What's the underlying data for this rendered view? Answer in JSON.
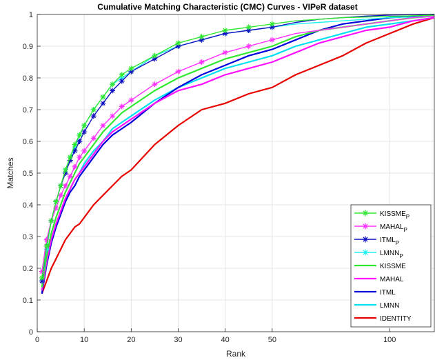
{
  "chart_data": {
    "type": "line",
    "title": "Cumulative Matching Characteristic (CMC) Curves - VIPeR dataset",
    "xlabel": "Rank",
    "ylabel": "Matches",
    "xlim": [
      0,
      119
    ],
    "ylim": [
      0,
      1
    ],
    "xticks": [
      0,
      10,
      20,
      30,
      40,
      50,
      100
    ],
    "yticks": [
      0,
      0.1,
      0.2,
      0.3,
      0.4,
      0.5,
      0.6,
      0.7,
      0.8,
      0.9,
      1
    ],
    "x_scale": "piecewise-linear: ranks 0-50 are spaced at double width relative to ranks 50-119",
    "grid": true,
    "legend_position": "bottom-right",
    "series": [
      {
        "name": "KISSME",
        "name_subscript": "P",
        "color": "#30e830",
        "marker": "asterisk",
        "x": [
          1,
          2,
          3,
          4,
          5,
          6,
          7,
          8,
          9,
          10,
          12,
          14,
          16,
          18,
          20,
          25,
          30,
          35,
          40,
          45,
          50,
          60,
          70,
          80,
          90,
          100,
          110,
          119
        ],
        "y": [
          0.17,
          0.27,
          0.35,
          0.41,
          0.46,
          0.51,
          0.55,
          0.59,
          0.62,
          0.65,
          0.7,
          0.74,
          0.78,
          0.81,
          0.83,
          0.87,
          0.91,
          0.93,
          0.95,
          0.96,
          0.97,
          0.98,
          0.985,
          0.99,
          0.992,
          0.994,
          0.996,
          0.998
        ]
      },
      {
        "name": "MAHAL",
        "name_subscript": "P",
        "color": "#ff30ff",
        "marker": "asterisk",
        "x": [
          1,
          2,
          3,
          4,
          5,
          6,
          7,
          8,
          9,
          10,
          12,
          14,
          16,
          18,
          20,
          25,
          30,
          35,
          40,
          45,
          50,
          60,
          70,
          80,
          90,
          100,
          110,
          119
        ],
        "y": [
          0.19,
          0.29,
          0.35,
          0.39,
          0.43,
          0.46,
          0.49,
          0.52,
          0.55,
          0.57,
          0.61,
          0.65,
          0.68,
          0.71,
          0.73,
          0.78,
          0.82,
          0.85,
          0.88,
          0.9,
          0.92,
          0.94,
          0.95,
          0.96,
          0.97,
          0.98,
          0.99,
          0.995
        ]
      },
      {
        "name": "ITML",
        "name_subscript": "P",
        "color": "#1010c0",
        "marker": "asterisk",
        "x": [
          1,
          2,
          3,
          4,
          5,
          6,
          7,
          8,
          9,
          10,
          12,
          14,
          16,
          18,
          20,
          25,
          30,
          35,
          40,
          45,
          50,
          60,
          70,
          80,
          90,
          100,
          110,
          119
        ],
        "y": [
          0.16,
          0.27,
          0.35,
          0.41,
          0.46,
          0.5,
          0.54,
          0.57,
          0.6,
          0.63,
          0.68,
          0.72,
          0.76,
          0.79,
          0.82,
          0.86,
          0.9,
          0.92,
          0.94,
          0.95,
          0.96,
          0.975,
          0.985,
          0.99,
          0.995,
          0.998,
          1.0,
          1.0
        ]
      },
      {
        "name": "LMNN",
        "name_subscript": "P",
        "color": "#20f0f0",
        "marker": "asterisk",
        "x": [
          1,
          2,
          3,
          4,
          5,
          6,
          7,
          8,
          9,
          10,
          12,
          14,
          16,
          18,
          20,
          25,
          30,
          35,
          40,
          45,
          50,
          60,
          70,
          80,
          90,
          100,
          110,
          119
        ],
        "y": [
          0.16,
          0.26,
          0.35,
          0.41,
          0.46,
          0.51,
          0.55,
          0.58,
          0.62,
          0.65,
          0.7,
          0.74,
          0.78,
          0.8,
          0.82,
          0.87,
          0.9,
          0.92,
          0.94,
          0.95,
          0.96,
          0.97,
          0.975,
          0.98,
          0.985,
          0.99,
          0.992,
          0.995
        ]
      },
      {
        "name": "KISSME",
        "color": "#30e830",
        "marker": "none",
        "x": [
          1,
          2,
          3,
          4,
          5,
          6,
          7,
          8,
          9,
          10,
          12,
          14,
          16,
          18,
          20,
          25,
          30,
          35,
          40,
          45,
          50,
          60,
          70,
          80,
          90,
          100,
          110,
          119
        ],
        "y": [
          0.14,
          0.24,
          0.31,
          0.36,
          0.4,
          0.44,
          0.47,
          0.5,
          0.53,
          0.55,
          0.59,
          0.63,
          0.66,
          0.69,
          0.71,
          0.76,
          0.8,
          0.83,
          0.86,
          0.88,
          0.9,
          0.93,
          0.95,
          0.96,
          0.97,
          0.98,
          0.99,
          0.995
        ]
      },
      {
        "name": "MAHAL",
        "color": "#ff10ff",
        "marker": "none",
        "x": [
          1,
          2,
          3,
          4,
          5,
          6,
          7,
          8,
          9,
          10,
          12,
          14,
          16,
          18,
          20,
          25,
          30,
          35,
          40,
          45,
          50,
          60,
          70,
          80,
          90,
          100,
          110,
          119
        ],
        "y": [
          0.13,
          0.22,
          0.29,
          0.34,
          0.38,
          0.42,
          0.45,
          0.48,
          0.5,
          0.52,
          0.56,
          0.6,
          0.63,
          0.65,
          0.67,
          0.72,
          0.76,
          0.78,
          0.81,
          0.83,
          0.85,
          0.88,
          0.91,
          0.93,
          0.95,
          0.96,
          0.98,
          0.99
        ]
      },
      {
        "name": "ITML",
        "color": "#0000dd",
        "marker": "none",
        "x": [
          1,
          2,
          3,
          4,
          5,
          6,
          7,
          8,
          9,
          10,
          12,
          14,
          16,
          18,
          20,
          25,
          30,
          35,
          40,
          45,
          50,
          60,
          70,
          80,
          90,
          100,
          110,
          119
        ],
        "y": [
          0.12,
          0.21,
          0.28,
          0.33,
          0.37,
          0.41,
          0.44,
          0.46,
          0.49,
          0.51,
          0.55,
          0.59,
          0.62,
          0.64,
          0.66,
          0.72,
          0.77,
          0.81,
          0.84,
          0.87,
          0.89,
          0.92,
          0.95,
          0.97,
          0.98,
          0.99,
          0.995,
          1.0
        ]
      },
      {
        "name": "LMNN",
        "color": "#00e0f0",
        "marker": "none",
        "x": [
          1,
          2,
          3,
          4,
          5,
          6,
          7,
          8,
          9,
          10,
          12,
          14,
          16,
          18,
          20,
          25,
          30,
          35,
          40,
          45,
          50,
          60,
          70,
          80,
          90,
          100,
          110,
          119
        ],
        "y": [
          0.13,
          0.22,
          0.29,
          0.34,
          0.38,
          0.42,
          0.45,
          0.48,
          0.5,
          0.53,
          0.57,
          0.6,
          0.64,
          0.66,
          0.68,
          0.73,
          0.77,
          0.8,
          0.83,
          0.85,
          0.87,
          0.9,
          0.92,
          0.94,
          0.96,
          0.97,
          0.98,
          0.99
        ]
      },
      {
        "name": "IDENTITY",
        "color": "#e80000",
        "marker": "none",
        "x": [
          1,
          2,
          3,
          4,
          5,
          6,
          7,
          8,
          9,
          10,
          12,
          14,
          16,
          18,
          20,
          25,
          30,
          35,
          40,
          45,
          50,
          60,
          70,
          80,
          90,
          100,
          110,
          119
        ],
        "y": [
          0.12,
          0.16,
          0.2,
          0.23,
          0.26,
          0.29,
          0.31,
          0.33,
          0.34,
          0.36,
          0.4,
          0.43,
          0.46,
          0.49,
          0.51,
          0.59,
          0.65,
          0.7,
          0.72,
          0.75,
          0.77,
          0.81,
          0.84,
          0.87,
          0.91,
          0.94,
          0.97,
          0.99
        ]
      }
    ]
  }
}
